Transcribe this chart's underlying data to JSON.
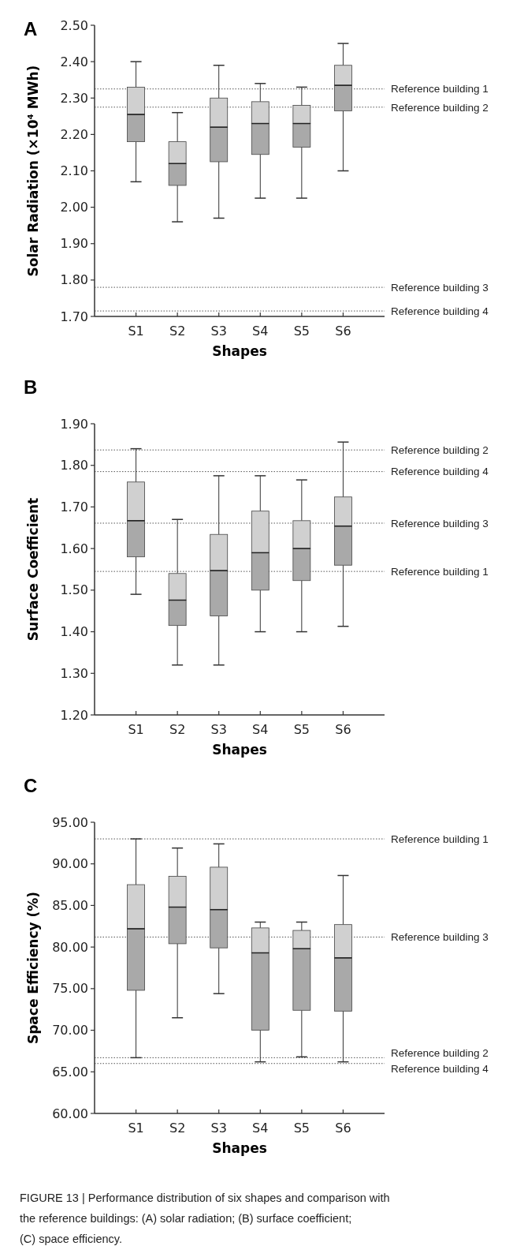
{
  "chart_data": [
    {
      "type": "box",
      "title": "A",
      "ylabel": "Solar Radiation (×10⁴ MWh)",
      "xlabel": "Shapes",
      "categories": [
        "S1",
        "S2",
        "S3",
        "S4",
        "S5",
        "S6"
      ],
      "ylim": [
        1.7,
        2.5
      ],
      "yticks": [
        {
          "value": 1.7,
          "label": "1.70"
        },
        {
          "value": 1.8,
          "label": "1.80"
        },
        {
          "value": 1.9,
          "label": "1.90"
        },
        {
          "value": 2.0,
          "label": "2.00"
        },
        {
          "value": 2.1,
          "label": "2.10"
        },
        {
          "value": 2.2,
          "label": "2.20"
        },
        {
          "value": 2.3,
          "label": "2.30"
        },
        {
          "value": 2.4,
          "label": "2.40"
        },
        {
          "value": 2.5,
          "label": "2.50"
        }
      ],
      "series": [
        {
          "color": "#a9a9a9",
          "boxes": [
            {
              "low": 2.07,
              "q1": 2.18,
              "median": 2.255,
              "q3": 2.33,
              "high": 2.4
            },
            {
              "low": 1.96,
              "q1": 2.06,
              "median": 2.12,
              "q3": 2.18,
              "high": 2.26
            },
            {
              "low": 1.97,
              "q1": 2.125,
              "median": 2.22,
              "q3": 2.3,
              "high": 2.39
            },
            {
              "low": 2.025,
              "q1": 2.145,
              "median": 2.23,
              "q3": 2.29,
              "high": 2.34
            },
            {
              "low": 2.025,
              "q1": 2.165,
              "median": 2.23,
              "q3": 2.28,
              "high": 2.33
            },
            {
              "low": 2.1,
              "q1": 2.265,
              "median": 2.335,
              "q3": 2.39,
              "high": 2.45
            }
          ]
        }
      ],
      "ref_lines": [
        {
          "axis": "y",
          "value": 2.325,
          "label": "Reference building 1",
          "line_style": "dotted"
        },
        {
          "axis": "y",
          "value": 2.275,
          "label": "Reference building 2",
          "line_style": "dotted"
        },
        {
          "axis": "y",
          "value": 1.78,
          "label": "Reference building 3",
          "line_style": "dotted"
        },
        {
          "axis": "y",
          "value": 1.715,
          "label": "Reference building 4",
          "line_style": "dotted"
        }
      ]
    },
    {
      "type": "box",
      "title": "B",
      "ylabel": "Surface Coefficient",
      "xlabel": "Shapes",
      "categories": [
        "S1",
        "S2",
        "S3",
        "S4",
        "S5",
        "S6"
      ],
      "ylim": [
        1.2,
        1.9
      ],
      "yticks": [
        {
          "value": 1.2,
          "label": "1.20"
        },
        {
          "value": 1.3,
          "label": "1.30"
        },
        {
          "value": 1.4,
          "label": "1.40"
        },
        {
          "value": 1.5,
          "label": "1.50"
        },
        {
          "value": 1.6,
          "label": "1.60"
        },
        {
          "value": 1.7,
          "label": "1.70"
        },
        {
          "value": 1.8,
          "label": "1.80"
        },
        {
          "value": 1.9,
          "label": "1.90"
        }
      ],
      "series": [
        {
          "color": "#a9a9a9",
          "boxes": [
            {
              "low": 1.49,
              "q1": 1.58,
              "median": 1.667,
              "q3": 1.76,
              "high": 1.84
            },
            {
              "low": 1.32,
              "q1": 1.415,
              "median": 1.476,
              "q3": 1.54,
              "high": 1.67
            },
            {
              "low": 1.32,
              "q1": 1.438,
              "median": 1.547,
              "q3": 1.634,
              "high": 1.775
            },
            {
              "low": 1.4,
              "q1": 1.5,
              "median": 1.59,
              "q3": 1.69,
              "high": 1.775
            },
            {
              "low": 1.4,
              "q1": 1.523,
              "median": 1.6,
              "q3": 1.667,
              "high": 1.765
            },
            {
              "low": 1.413,
              "q1": 1.56,
              "median": 1.654,
              "q3": 1.724,
              "high": 1.856
            }
          ]
        }
      ],
      "ref_lines": [
        {
          "axis": "y",
          "value": 1.837,
          "label": "Reference building 2",
          "line_style": "dotted"
        },
        {
          "axis": "y",
          "value": 1.785,
          "label": "Reference building 4",
          "line_style": "dotted"
        },
        {
          "axis": "y",
          "value": 1.661,
          "label": "Reference building 3",
          "line_style": "dotted"
        },
        {
          "axis": "y",
          "value": 1.545,
          "label": "Reference building 1",
          "line_style": "dotted"
        }
      ]
    },
    {
      "type": "box",
      "title": "C",
      "ylabel": "Space Efficiency (%)",
      "xlabel": "Shapes",
      "categories": [
        "S1",
        "S2",
        "S3",
        "S4",
        "S5",
        "S6"
      ],
      "ylim": [
        60,
        95
      ],
      "yticks": [
        {
          "value": 60,
          "label": "60.00"
        },
        {
          "value": 65,
          "label": "65.00"
        },
        {
          "value": 70,
          "label": "70.00"
        },
        {
          "value": 75,
          "label": "75.00"
        },
        {
          "value": 80,
          "label": "80.00"
        },
        {
          "value": 85,
          "label": "85.00"
        },
        {
          "value": 90,
          "label": "90.00"
        },
        {
          "value": 95,
          "label": "95.00"
        }
      ],
      "series": [
        {
          "color": "#a9a9a9",
          "boxes": [
            {
              "low": 66.7,
              "q1": 74.8,
              "median": 82.2,
              "q3": 87.5,
              "high": 93.0
            },
            {
              "low": 71.5,
              "q1": 80.4,
              "median": 84.8,
              "q3": 88.5,
              "high": 91.9
            },
            {
              "low": 74.4,
              "q1": 79.9,
              "median": 84.5,
              "q3": 89.6,
              "high": 92.4
            },
            {
              "low": 66.2,
              "q1": 70.0,
              "median": 79.3,
              "q3": 82.3,
              "high": 83.0
            },
            {
              "low": 66.8,
              "q1": 72.4,
              "median": 79.8,
              "q3": 82.0,
              "high": 83.0
            },
            {
              "low": 66.2,
              "q1": 72.3,
              "median": 78.7,
              "q3": 82.7,
              "high": 88.6
            }
          ]
        }
      ],
      "ref_lines": [
        {
          "axis": "y",
          "value": 93.0,
          "label": "Reference building 1",
          "line_style": "dotted"
        },
        {
          "axis": "y",
          "value": 81.2,
          "label": "Reference building 3",
          "line_style": "dotted"
        },
        {
          "axis": "y",
          "value": 66.7,
          "label": "Reference building 2",
          "line_style": "dotted"
        },
        {
          "axis": "y",
          "value": 66.0,
          "label": "Reference building 4",
          "line_style": "dotted"
        }
      ],
      "annotations": [
        "FIGURE 13 | Performance distribution of six shapes and comparison with the reference buildings: (A) solar radiation; (B) surface coefficient; (C) space efficiency."
      ]
    }
  ]
}
